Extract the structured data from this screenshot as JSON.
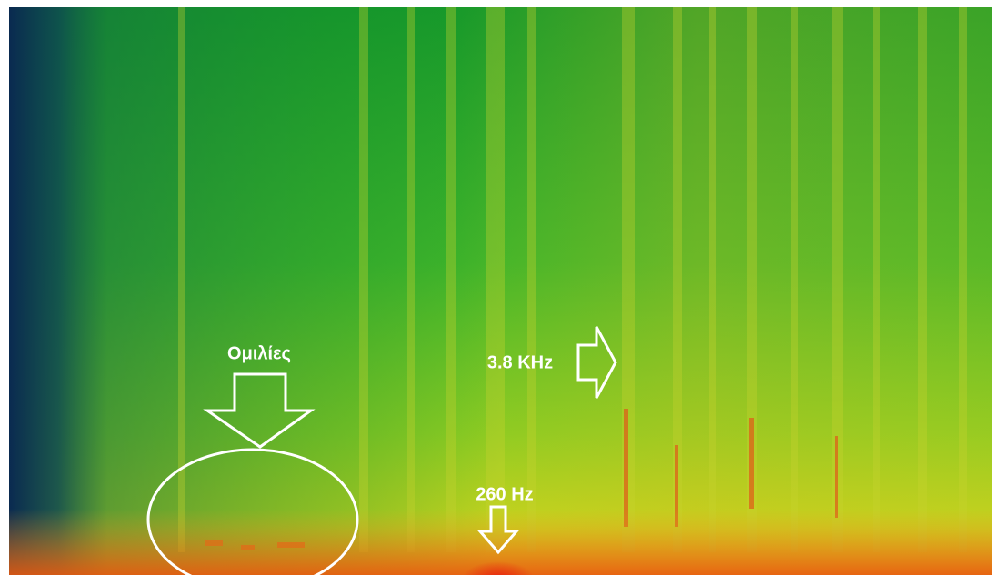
{
  "annotations": {
    "speech": "Ομιλίες",
    "high_freq": "3.8 KHz",
    "low_freq": "260 Hz"
  }
}
